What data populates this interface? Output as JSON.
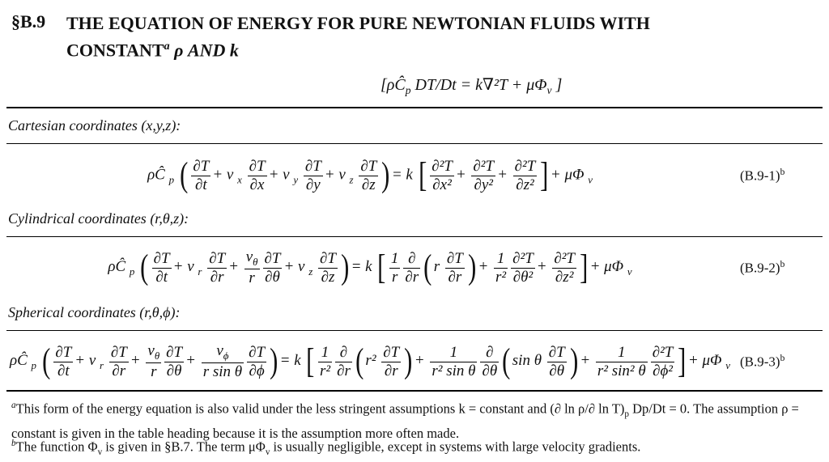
{
  "header": {
    "number": "§B.9",
    "title_line1": "THE EQUATION OF ENERGY FOR PURE NEWTONIAN FLUIDS WITH",
    "title_line2": "CONSTANT",
    "title_note": "a",
    "title_end": "ρ AND k"
  },
  "summary_equation": [
    {
      "text": "[ρĈ",
      "sub": "p"
    },
    {
      "text": "DT/Dt = k∇²T + μΦ",
      "sub": "v"
    },
    {
      "text": "]"
    }
  ],
  "sections": [
    {
      "label": "Cartesian coordinates (x,y,z):",
      "number": "(B.9-1)",
      "number_note": "b",
      "equation": [
        {
          "text": "ρĈ",
          "sub": "p"
        },
        {
          "text": "("
        },
        {
          "num": "∂T",
          "den": "∂t"
        },
        {
          "text": "+ v",
          "sub": "x"
        },
        {
          "num": "∂T",
          "den": "∂x"
        },
        {
          "text": "+ v",
          "sub": "y"
        },
        {
          "num": "∂T",
          "den": "∂y"
        },
        {
          "text": "+ v",
          "sub": "z"
        },
        {
          "num": "∂T",
          "den": "∂z"
        },
        {
          "text": ")"
        },
        {
          "text": "= k"
        },
        {
          "text": "["
        },
        {
          "num": "∂²T",
          "den": "∂x²"
        },
        {
          "text": "+"
        },
        {
          "num": "∂²T",
          "den": "∂y²"
        },
        {
          "text": "+"
        },
        {
          "num": "∂²T",
          "den": "∂z²"
        },
        {
          "text": "]"
        },
        {
          "text": "+ μΦ",
          "sub": "v"
        }
      ]
    },
    {
      "label": "Cylindrical coordinates (r,θ,z):",
      "number": "(B.9-2)",
      "number_note": "b",
      "equation": [
        {
          "text": "ρĈ",
          "sub": "p"
        },
        {
          "text": "("
        },
        {
          "num": "∂T",
          "den": "∂t"
        },
        {
          "text": "+ v",
          "sub": "r"
        },
        {
          "num": "∂T",
          "den": "∂r"
        },
        {
          "text": "+"
        },
        {
          "num": "v",
          "num_sub": "θ",
          "den": "r"
        },
        {
          "num": "∂T",
          "den": "∂θ"
        },
        {
          "text": "+ v",
          "sub": "z"
        },
        {
          "num": "∂T",
          "den": "∂z"
        },
        {
          "text": ")"
        },
        {
          "text": "= k"
        },
        {
          "text": "["
        },
        {
          "num": "1",
          "den": "r"
        },
        {
          "num": "∂",
          "den": "∂r"
        },
        {
          "text": "("
        },
        {
          "text": "r"
        },
        {
          "num": "∂T",
          "den": "∂r"
        },
        {
          "text": ")"
        },
        {
          "text": "+"
        },
        {
          "num": "1",
          "den": "r²"
        },
        {
          "num": "∂²T",
          "den": "∂θ²"
        },
        {
          "text": "+"
        },
        {
          "num": "∂²T",
          "den": "∂z²"
        },
        {
          "text": "]"
        },
        {
          "text": "+ μΦ",
          "sub": "v"
        }
      ]
    },
    {
      "label": "Spherical coordinates (r,θ,ϕ):",
      "number": "(B.9-3)",
      "number_note": "b",
      "equation": [
        {
          "text": "ρĈ",
          "sub": "p"
        },
        {
          "text": "("
        },
        {
          "num": "∂T",
          "den": "∂t"
        },
        {
          "text": "+ v",
          "sub": "r"
        },
        {
          "num": "∂T",
          "den": "∂r"
        },
        {
          "text": "+"
        },
        {
          "num": "v",
          "num_sub": "θ",
          "den": "r"
        },
        {
          "num": "∂T",
          "den": "∂θ"
        },
        {
          "text": "+"
        },
        {
          "num": "v",
          "num_sub": "ϕ",
          "den": "r sin θ"
        },
        {
          "num": "∂T",
          "den": "∂ϕ"
        },
        {
          "text": ")"
        },
        {
          "text": "= k"
        },
        {
          "text": "["
        },
        {
          "num": "1",
          "den": "r²"
        },
        {
          "num": "∂",
          "den": "∂r"
        },
        {
          "text": "("
        },
        {
          "text": "r²"
        },
        {
          "num": "∂T",
          "den": "∂r"
        },
        {
          "text": ")"
        },
        {
          "text": "+"
        },
        {
          "num": "1",
          "den": "r² sin θ"
        },
        {
          "num": "∂",
          "den": "∂θ"
        },
        {
          "text": "("
        },
        {
          "text": "sin θ"
        },
        {
          "num": "∂T",
          "den": "∂θ"
        },
        {
          "text": ")"
        },
        {
          "text": "+"
        },
        {
          "num": "1",
          "den": "r² sin² θ"
        },
        {
          "num": "∂²T",
          "den": "∂ϕ²"
        },
        {
          "text": "]"
        },
        {
          "text": "+ μΦ",
          "sub": "v"
        }
      ]
    }
  ],
  "footnotes": [
    [
      {
        "sup": "a"
      },
      {
        "text": "This form of the energy equation is also valid under the less stringent assumptions k = constant and (∂ ln ρ/∂ ln T)",
        "sub": "p"
      },
      {
        "text": "Dp/Dt = 0. The assumption ρ = constant is given in the table heading because it is the assumption more often made."
      }
    ],
    [
      {
        "sup": "b"
      },
      {
        "text": "The function Φ",
        "sub": "v"
      },
      {
        "text": " is given in §B.7. The term μΦ",
        "sub": "v"
      },
      {
        "text": " is usually negligible, except in systems with large velocity gradients."
      }
    ]
  ]
}
